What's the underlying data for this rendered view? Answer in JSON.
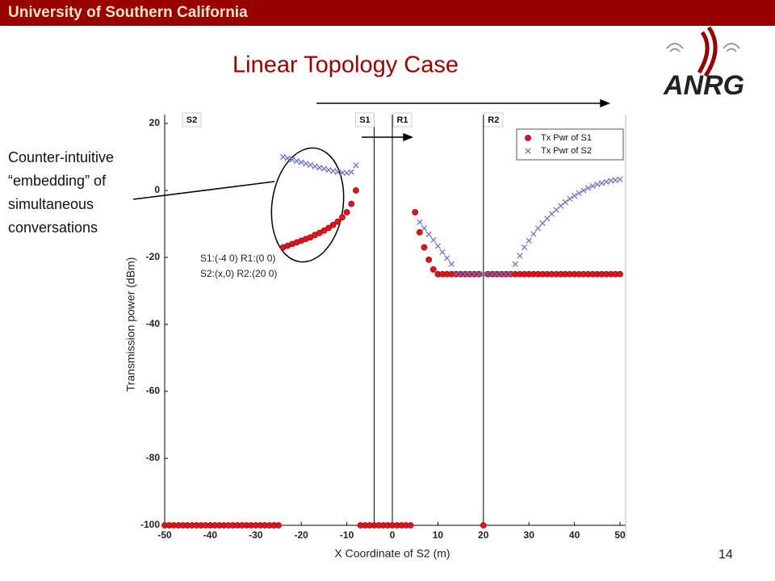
{
  "header": {
    "title": "University of Southern California"
  },
  "slide": {
    "title": "Linear Topology Case",
    "logo": "ANRG",
    "page_number": "14",
    "annotation": [
      "Counter-intuitive",
      "“embedding” of",
      "simultaneous",
      "conversations"
    ]
  },
  "chart_data": {
    "type": "scatter",
    "xlabel": "X Coordinate of S2 (m)",
    "ylabel": "Transmission power (dBm)",
    "xlim": [
      -50,
      50
    ],
    "ylim": [
      -100,
      20
    ],
    "xticks": [
      -50,
      -40,
      -30,
      -20,
      -10,
      0,
      10,
      20,
      30,
      40,
      50
    ],
    "yticks": [
      -100,
      -80,
      -60,
      -40,
      -20,
      0,
      20
    ],
    "legend": "upper right",
    "inset_text": [
      "S1:(-4 0) R1:(0 0)",
      "S2:(x,0) R2:(20 0)"
    ],
    "markers": [
      {
        "label": "S2"
      },
      {
        "label": "S1",
        "x": -4
      },
      {
        "label": "R1",
        "x": 0
      },
      {
        "label": "R2",
        "x": 20
      }
    ],
    "x": [
      -50,
      -49,
      -48,
      -47,
      -46,
      -45,
      -44,
      -43,
      -42,
      -41,
      -40,
      -39,
      -38,
      -37,
      -36,
      -35,
      -34,
      -33,
      -32,
      -31,
      -30,
      -29,
      -28,
      -27,
      -26,
      -25,
      -24,
      -23,
      -22,
      -21,
      -20,
      -19,
      -18,
      -17,
      -16,
      -15,
      -14,
      -13,
      -12,
      -11,
      -10,
      -9,
      -8,
      -7,
      -6,
      -5,
      -4,
      -3,
      -2,
      -1,
      0,
      1,
      2,
      3,
      4,
      5,
      6,
      7,
      8,
      9,
      10,
      11,
      12,
      13,
      14,
      15,
      16,
      17,
      18,
      19,
      20,
      21,
      22,
      23,
      24,
      25,
      26,
      27,
      28,
      29,
      30,
      31,
      32,
      33,
      34,
      35,
      36,
      37,
      38,
      39,
      40,
      41,
      42,
      43,
      44,
      45,
      46,
      47,
      48,
      49,
      50
    ],
    "series": [
      {
        "name": "Tx Pwr of S1",
        "color": "#e0141e",
        "marker": "circle",
        "values": [
          -100,
          -100,
          -100,
          -100,
          -100,
          -100,
          -100,
          -100,
          -100,
          -100,
          -100,
          -100,
          -100,
          -100,
          -100,
          -100,
          -100,
          -100,
          -100,
          -100,
          -100,
          -100,
          -100,
          -100,
          -100,
          -100,
          -17,
          -16.5,
          -16,
          -15.5,
          -15,
          -14.5,
          -14,
          -13.3,
          -12.7,
          -12,
          -11.2,
          -10.3,
          -9.3,
          -8,
          -6.5,
          -4,
          0,
          -100,
          -100,
          -100,
          -100,
          -100,
          -100,
          -100,
          -100,
          -100,
          -100,
          -100,
          -100,
          -6.5,
          -12.5,
          -17,
          -20.7,
          -23.6,
          -25,
          -25,
          -25,
          -25,
          -25,
          -25,
          -25,
          -25,
          -25,
          -25,
          -100,
          -25,
          -25,
          -25,
          -25,
          -25,
          -25,
          -25,
          -25,
          -25,
          -25,
          -25,
          -25,
          -25,
          -25,
          -25,
          -25,
          -25,
          -25,
          -25,
          -25,
          -25,
          -25,
          -25,
          -25,
          -25,
          -25,
          -25,
          -25,
          -25,
          -25
        ]
      },
      {
        "name": "Tx Pwr of S2",
        "color": "#6a6ac8",
        "marker": "x",
        "values": [
          null,
          null,
          null,
          null,
          null,
          null,
          null,
          null,
          null,
          null,
          null,
          null,
          null,
          null,
          null,
          null,
          null,
          null,
          null,
          null,
          null,
          null,
          null,
          null,
          null,
          null,
          10,
          9.6,
          9.2,
          8.8,
          8.4,
          8,
          7.6,
          7.2,
          6.8,
          6.5,
          6.1,
          5.8,
          5.5,
          5.3,
          5.2,
          5.5,
          7.5,
          null,
          null,
          null,
          null,
          null,
          null,
          null,
          null,
          null,
          null,
          null,
          null,
          null,
          -9.5,
          -11.3,
          -13.1,
          -14.8,
          -16.6,
          -18.4,
          -20.2,
          -22,
          -25,
          -25,
          -25,
          -25,
          -25,
          -25,
          -25,
          -25,
          -25,
          -25,
          -25,
          -25,
          -25,
          -22,
          -19.5,
          -17,
          -15,
          -13,
          -11.3,
          -9.8,
          -8.4,
          -7,
          -5.8,
          -4.6,
          -3.5,
          -2.5,
          -1.6,
          -0.8,
          0,
          0.7,
          1.3,
          1.8,
          2.2,
          2.6,
          2.9,
          3.1,
          3.3
        ]
      }
    ]
  }
}
